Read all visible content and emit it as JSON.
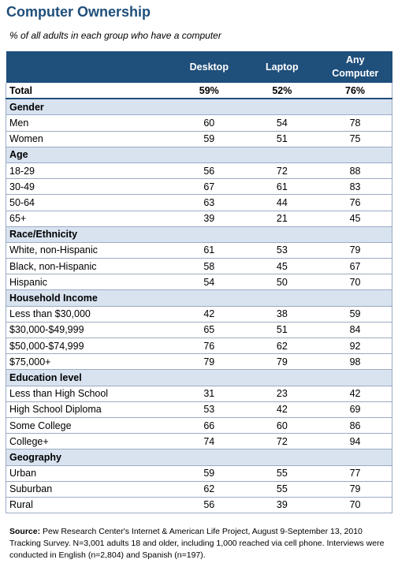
{
  "title": "Computer Ownership",
  "subtitle": "% of all adults in each group who have a computer",
  "header": {
    "col1": "Desktop",
    "col2": "Laptop",
    "col3_line1": "Any",
    "col3_line2": "Computer"
  },
  "total": {
    "label": "Total",
    "desktop": "59%",
    "laptop": "52%",
    "any": "76%"
  },
  "sections": [
    {
      "name": "Gender",
      "rows": [
        {
          "label": "Men",
          "desktop": "60",
          "laptop": "54",
          "any": "78"
        },
        {
          "label": "Women",
          "desktop": "59",
          "laptop": "51",
          "any": "75"
        }
      ]
    },
    {
      "name": "Age",
      "rows": [
        {
          "label": "18-29",
          "desktop": "56",
          "laptop": "72",
          "any": "88"
        },
        {
          "label": "30-49",
          "desktop": "67",
          "laptop": "61",
          "any": "83"
        },
        {
          "label": "50-64",
          "desktop": "63",
          "laptop": "44",
          "any": "76"
        },
        {
          "label": "65+",
          "desktop": "39",
          "laptop": "21",
          "any": "45"
        }
      ]
    },
    {
      "name": "Race/Ethnicity",
      "rows": [
        {
          "label": "White, non-Hispanic",
          "desktop": "61",
          "laptop": "53",
          "any": "79"
        },
        {
          "label": "Black, non-Hispanic",
          "desktop": "58",
          "laptop": "45",
          "any": "67"
        },
        {
          "label": "Hispanic",
          "desktop": "54",
          "laptop": "50",
          "any": "70"
        }
      ]
    },
    {
      "name": "Household Income",
      "rows": [
        {
          "label": "Less than $30,000",
          "desktop": "42",
          "laptop": "38",
          "any": "59"
        },
        {
          "label": "$30,000-$49,999",
          "desktop": "65",
          "laptop": "51",
          "any": "84"
        },
        {
          "label": "$50,000-$74,999",
          "desktop": "76",
          "laptop": "62",
          "any": "92"
        },
        {
          "label": "$75,000+",
          "desktop": "79",
          "laptop": "79",
          "any": "98"
        }
      ]
    },
    {
      "name": "Education level",
      "rows": [
        {
          "label": "Less than High School",
          "desktop": "31",
          "laptop": "23",
          "any": "42"
        },
        {
          "label": "High School Diploma",
          "desktop": "53",
          "laptop": "42",
          "any": "69"
        },
        {
          "label": "Some College",
          "desktop": "66",
          "laptop": "60",
          "any": "86"
        },
        {
          "label": "College+",
          "desktop": "74",
          "laptop": "72",
          "any": "94"
        }
      ]
    },
    {
      "name": "Geography",
      "rows": [
        {
          "label": "Urban",
          "desktop": "59",
          "laptop": "55",
          "any": "77"
        },
        {
          "label": "Suburban",
          "desktop": "62",
          "laptop": "55",
          "any": "79"
        },
        {
          "label": "Rural",
          "desktop": "56",
          "laptop": "39",
          "any": "70"
        }
      ]
    }
  ],
  "source": {
    "label": "Source:",
    "text": " Pew Research Center's Internet & American Life Project, August 9-September 13, 2010 Tracking Survey. N=3,001 adults 18 and older, including 1,000 reached via cell phone. Interviews were conducted in English (n=2,804) and Spanish (n=197)."
  }
}
